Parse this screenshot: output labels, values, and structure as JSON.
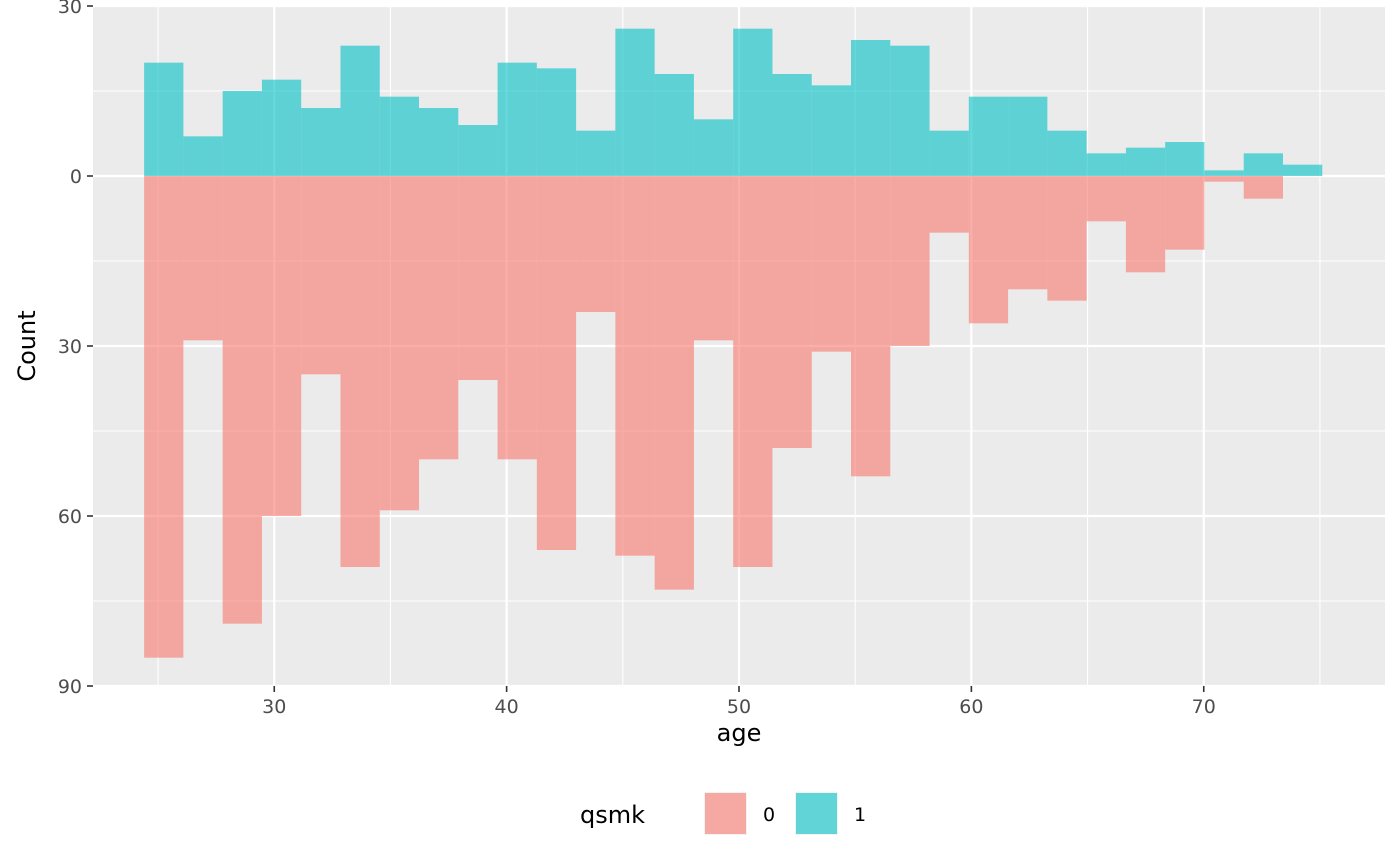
{
  "chart_data": {
    "type": "bar",
    "subtype": "mirrored-histogram",
    "xlabel": "age",
    "ylabel": "Count",
    "xlim": [
      22.2,
      77.8
    ],
    "ylim": [
      -30,
      90
    ],
    "x_ticks": [
      30,
      40,
      50,
      60,
      70
    ],
    "y_ticks": [
      {
        "value": -30,
        "label": "30"
      },
      {
        "value": 0,
        "label": "0"
      },
      {
        "value": 30,
        "label": "30"
      },
      {
        "value": 60,
        "label": "60"
      },
      {
        "value": 90,
        "label": "90"
      }
    ],
    "grid": true,
    "bin_edges": [
      24.4,
      26.09,
      27.78,
      29.47,
      31.16,
      32.85,
      34.54,
      36.23,
      37.92,
      39.61,
      41.3,
      42.99,
      44.68,
      46.37,
      48.06,
      49.75,
      51.44,
      53.13,
      54.82,
      56.51,
      58.2,
      59.89,
      61.58,
      63.27,
      64.96,
      66.65,
      68.34,
      70.03,
      71.72,
      73.41,
      75.1
    ],
    "legend": {
      "title": "qsmk",
      "placement": "bottom"
    },
    "series": [
      {
        "name": "0",
        "color": "#F8766D",
        "direction": "down",
        "values": [
          85,
          29,
          79,
          60,
          35,
          69,
          59,
          50,
          36,
          50,
          66,
          24,
          67,
          73,
          29,
          69,
          48,
          31,
          53,
          30,
          10,
          26,
          20,
          22,
          8,
          17,
          13,
          1,
          4,
          0
        ]
      },
      {
        "name": "1",
        "color": "#00BFC4",
        "direction": "up",
        "values": [
          20,
          7,
          15,
          17,
          12,
          23,
          14,
          12,
          9,
          20,
          19,
          8,
          26,
          18,
          10,
          26,
          18,
          16,
          24,
          23,
          8,
          14,
          14,
          8,
          4,
          5,
          6,
          1,
          4,
          2
        ]
      }
    ]
  }
}
